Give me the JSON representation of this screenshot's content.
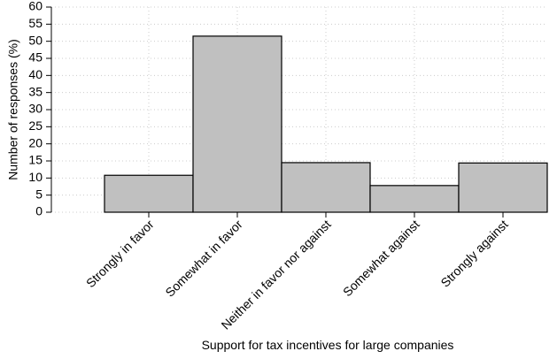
{
  "chart_data": {
    "type": "bar",
    "x_label": "Support for tax incentives for large companies",
    "y_label": "Number of responses (%)",
    "categories": [
      "Strongly in favor",
      "Somewhat in favor",
      "Neither in favor nor against",
      "Somewhat against",
      "Strongly against"
    ],
    "values": [
      10.8,
      51.5,
      14.5,
      7.8,
      14.4
    ],
    "color": "#c0c0c0",
    "ylim": [
      0,
      60
    ],
    "yticks": [
      0,
      5,
      10,
      15,
      20,
      25,
      30,
      35,
      40,
      45,
      50,
      55,
      60
    ],
    "grid": true
  }
}
